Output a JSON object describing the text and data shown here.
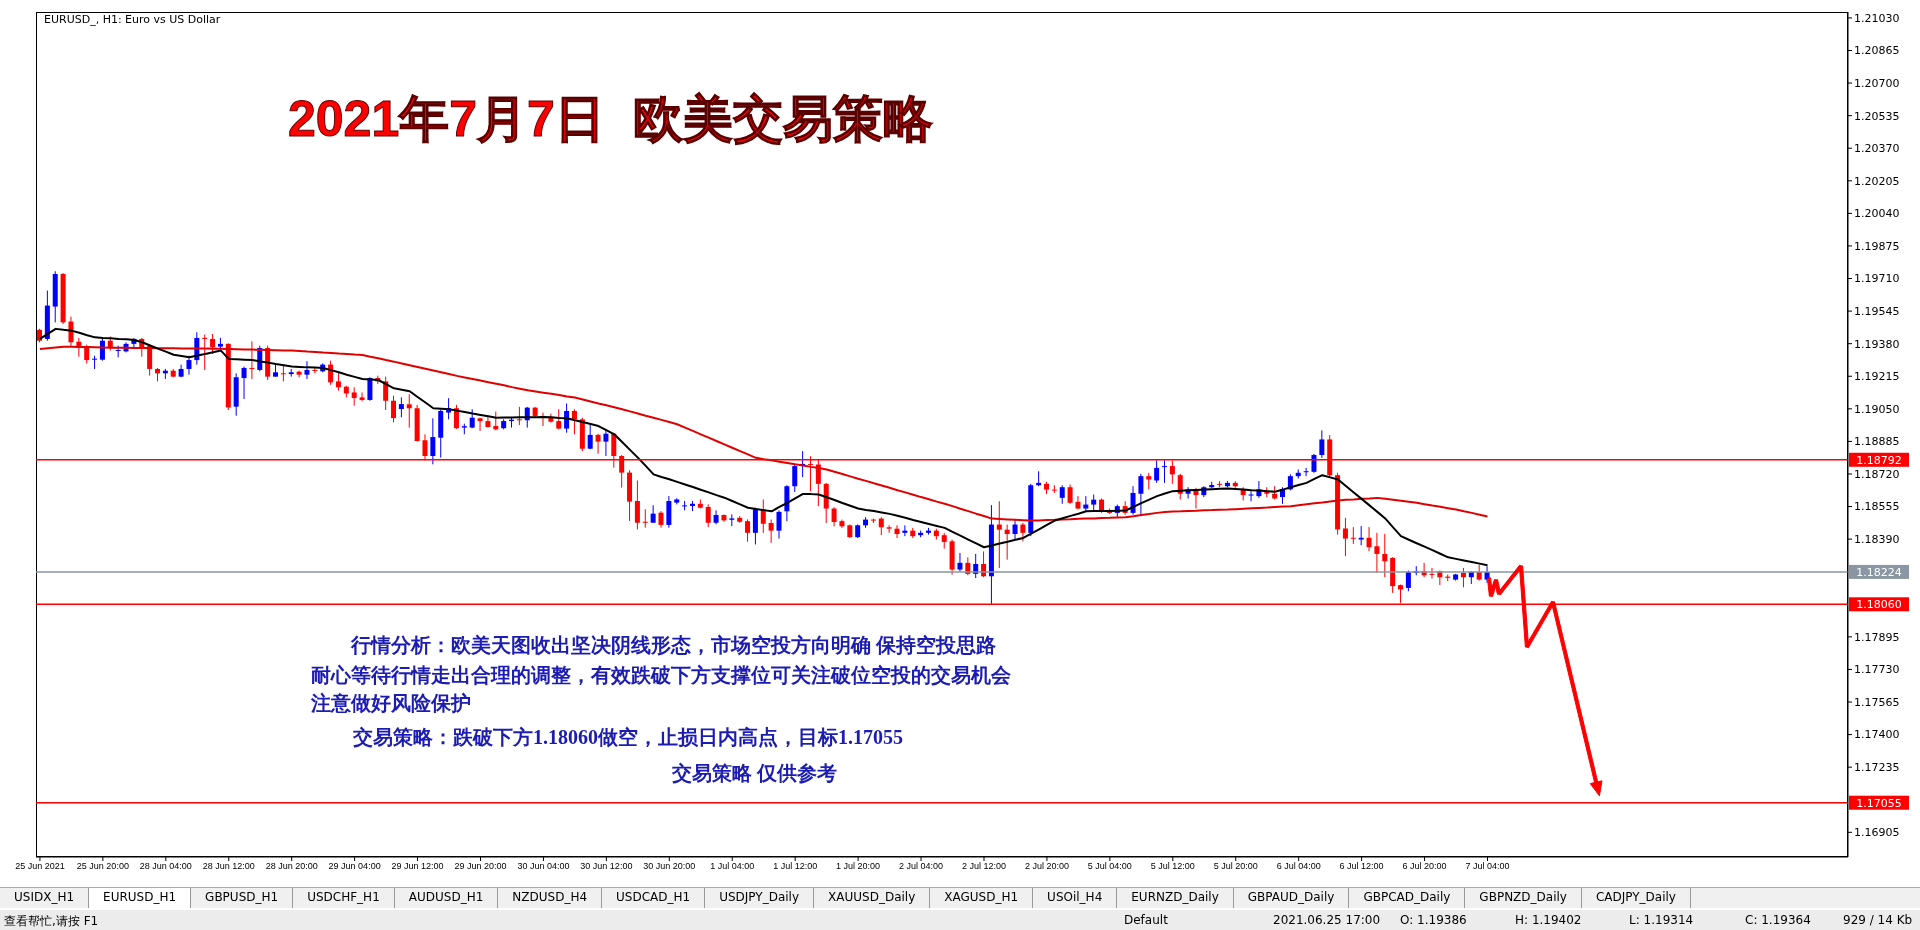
{
  "chart_data": {
    "type": "candlestick",
    "title": "2021年7月7日  欧美交易策略",
    "subtitle": "EURUSD_, H1: Euro vs US Dollar",
    "categories": [
      "25 Jun 2021",
      null,
      null,
      null,
      null,
      null,
      null,
      null,
      "25 Jun 20:00",
      null,
      null,
      null,
      null,
      null,
      null,
      null,
      "28 Jun 04:00",
      null,
      null,
      null,
      null,
      null,
      null,
      null,
      "28 Jun 12:00",
      null,
      null,
      null,
      null,
      null,
      null,
      null,
      "28 Jun 20:00",
      null,
      null,
      null,
      null,
      null,
      null,
      null,
      "29 Jun 04:00",
      null,
      null,
      null,
      null,
      null,
      null,
      null,
      "29 Jun 12:00",
      null,
      null,
      null,
      null,
      null,
      null,
      null,
      "29 Jun 20:00",
      null,
      null,
      null,
      null,
      null,
      null,
      null,
      "30 Jun 04:00",
      null,
      null,
      null,
      null,
      null,
      null,
      null,
      "30 Jun 12:00",
      null,
      null,
      null,
      null,
      null,
      null,
      null,
      "30 Jun 20:00",
      null,
      null,
      null,
      null,
      null,
      null,
      null,
      "1 Jul 04:00",
      null,
      null,
      null,
      null,
      null,
      null,
      null,
      "1 Jul 12:00",
      null,
      null,
      null,
      null,
      null,
      null,
      null,
      "1 Jul 20:00",
      null,
      null,
      null,
      null,
      null,
      null,
      null,
      "2 Jul 04:00",
      null,
      null,
      null,
      null,
      null,
      null,
      null,
      "2 Jul 12:00",
      null,
      null,
      null,
      null,
      null,
      null,
      null,
      "2 Jul 20:00",
      null,
      null,
      null,
      null,
      null,
      null,
      null,
      "5 Jul 04:00",
      null,
      null,
      null,
      null,
      null,
      null,
      null,
      "5 Jul 12:00",
      null,
      null,
      null,
      null,
      null,
      null,
      null,
      "5 Jul 20:00",
      null,
      null,
      null,
      null,
      null,
      null,
      null,
      "6 Jul 04:00",
      null,
      null,
      null,
      null,
      null,
      null,
      null,
      "6 Jul 12:00",
      null,
      null,
      null,
      null,
      null,
      null,
      null,
      "6 Jul 20:00",
      null,
      null,
      null,
      null,
      null,
      null,
      null,
      "7 Jul 04:00"
    ],
    "ohlc": [
      [
        1.1945,
        1.19455,
        1.19387,
        1.19395
      ],
      [
        1.19404,
        1.19649,
        1.19395,
        1.19573
      ],
      [
        1.19568,
        1.19747,
        1.19488,
        1.19733
      ],
      [
        1.19733,
        1.19738,
        1.1948,
        1.19488
      ],
      [
        1.19492,
        1.19517,
        1.19365,
        1.19387
      ],
      [
        1.1939,
        1.19409,
        1.19314,
        1.19365
      ],
      [
        1.19365,
        1.19375,
        1.1928,
        1.19297
      ],
      [
        1.19299,
        1.19319,
        1.19252,
        1.19304
      ],
      [
        1.19299,
        1.19412,
        1.19294,
        1.19395
      ],
      [
        1.19395,
        1.19416,
        1.19345,
        1.19358
      ],
      [
        1.19345,
        1.1937,
        1.19311,
        1.19348
      ],
      [
        1.19341,
        1.19387,
        1.19336,
        1.19379
      ],
      [
        1.19379,
        1.19409,
        1.19362,
        1.19404
      ],
      [
        1.19404,
        1.19409,
        1.19314,
        1.19358
      ],
      [
        1.1937,
        1.19379,
        1.19218,
        1.19252
      ],
      [
        1.19252,
        1.19257,
        1.19189,
        1.1923
      ],
      [
        1.1923,
        1.19252,
        1.19201,
        1.19243
      ],
      [
        1.19243,
        1.19252,
        1.1921,
        1.19213
      ],
      [
        1.19213,
        1.19274,
        1.1921,
        1.19252
      ],
      [
        1.19252,
        1.19319,
        1.19223,
        1.19297
      ],
      [
        1.19297,
        1.19438,
        1.19274,
        1.19409
      ],
      [
        1.19409,
        1.19426,
        1.19247,
        1.19404
      ],
      [
        1.19404,
        1.19429,
        1.19328,
        1.19362
      ],
      [
        1.19365,
        1.19409,
        1.19353,
        1.19379
      ],
      [
        1.19379,
        1.19382,
        1.19044,
        1.19057
      ],
      [
        1.19061,
        1.1923,
        1.19015,
        1.1921
      ],
      [
        1.19206,
        1.19264,
        1.191,
        1.19257
      ],
      [
        1.19257,
        1.19392,
        1.19201,
        1.19252
      ],
      [
        1.19247,
        1.1937,
        1.1924,
        1.19358
      ],
      [
        1.19358,
        1.1937,
        1.19196,
        1.19213
      ],
      [
        1.19213,
        1.19277,
        1.19213,
        1.19235
      ],
      [
        1.1923,
        1.19274,
        1.19189,
        1.19226
      ],
      [
        1.19226,
        1.19252,
        1.19213,
        1.19235
      ],
      [
        1.19238,
        1.19243,
        1.1921,
        1.19223
      ],
      [
        1.19223,
        1.19291,
        1.19201,
        1.19247
      ],
      [
        1.19247,
        1.19257,
        1.1923,
        1.19243
      ],
      [
        1.1924,
        1.1928,
        1.19235,
        1.19274
      ],
      [
        1.19274,
        1.19294,
        1.19172,
        1.19184
      ],
      [
        1.19189,
        1.19235,
        1.19142,
        1.19159
      ],
      [
        1.19162,
        1.19167,
        1.19108,
        1.19128
      ],
      [
        1.19133,
        1.19159,
        1.19066,
        1.19105
      ],
      [
        1.19108,
        1.19133,
        1.19088,
        1.19095
      ],
      [
        1.19095,
        1.1921,
        1.19091,
        1.19206
      ],
      [
        1.19206,
        1.19218,
        1.19176,
        1.19189
      ],
      [
        1.19189,
        1.19213,
        1.19044,
        1.19091
      ],
      [
        1.19091,
        1.19117,
        1.18981,
        1.19003
      ],
      [
        1.19049,
        1.19108,
        1.19007,
        1.19074
      ],
      [
        1.19073,
        1.19124,
        1.18955,
        1.19053
      ],
      [
        1.19053,
        1.1907,
        1.18884,
        1.18887
      ],
      [
        1.18891,
        1.18921,
        1.18789,
        1.18811
      ],
      [
        1.18811,
        1.19002,
        1.18769,
        1.18907
      ],
      [
        1.18904,
        1.19048,
        1.18803,
        1.19039
      ],
      [
        1.19031,
        1.19104,
        1.18997,
        1.19053
      ],
      [
        1.19053,
        1.1907,
        1.18948,
        1.18952
      ],
      [
        1.18955,
        1.18975,
        1.18921,
        1.18962
      ],
      [
        1.18955,
        1.19048,
        1.18952,
        1.19005
      ],
      [
        1.19002,
        1.19005,
        1.18938,
        1.18988
      ],
      [
        1.18988,
        1.19014,
        1.18955,
        1.18958
      ],
      [
        1.18963,
        1.19036,
        1.18941,
        1.18946
      ],
      [
        1.18952,
        1.18997,
        1.18946,
        1.18988
      ],
      [
        1.18988,
        1.19005,
        1.18955,
        1.18995
      ],
      [
        1.18997,
        1.1906,
        1.18968,
        1.18992
      ],
      [
        1.18992,
        1.1906,
        1.18955,
        1.19056
      ],
      [
        1.19056,
        1.1906,
        1.19005,
        1.19014
      ],
      [
        1.19014,
        1.19031,
        1.18963,
        1.19012
      ],
      [
        1.19009,
        1.19026,
        1.1898,
        1.18985
      ],
      [
        1.18988,
        1.19048,
        1.18946,
        1.1895
      ],
      [
        1.1895,
        1.19077,
        1.18929,
        1.19039
      ],
      [
        1.19039,
        1.19048,
        1.18921,
        1.18997
      ],
      [
        1.18997,
        1.19005,
        1.18836,
        1.18848
      ],
      [
        1.18848,
        1.18972,
        1.18845,
        1.18918
      ],
      [
        1.18918,
        1.18924,
        1.18823,
        1.18884
      ],
      [
        1.18884,
        1.18941,
        1.18811,
        1.18924
      ],
      [
        1.18924,
        1.18929,
        1.18752,
        1.18811
      ],
      [
        1.18811,
        1.18816,
        1.18651,
        1.18727
      ],
      [
        1.18727,
        1.18739,
        1.18482,
        1.1858
      ],
      [
        1.18583,
        1.18687,
        1.18439,
        1.18473
      ],
      [
        1.18478,
        1.18541,
        1.18448,
        1.18475
      ],
      [
        1.18473,
        1.18562,
        1.18473,
        1.18519
      ],
      [
        1.18524,
        1.18532,
        1.18448,
        1.18462
      ],
      [
        1.18462,
        1.18608,
        1.18448,
        1.18583
      ],
      [
        1.18575,
        1.18597,
        1.18566,
        1.18591
      ],
      [
        1.18558,
        1.18583,
        1.18536,
        1.18561
      ],
      [
        1.18558,
        1.18583,
        1.18532,
        1.18569
      ],
      [
        1.18569,
        1.18591,
        1.18546,
        1.18549
      ],
      [
        1.18553,
        1.18566,
        1.18451,
        1.18473
      ],
      [
        1.18473,
        1.18536,
        1.18465,
        1.18512
      ],
      [
        1.18512,
        1.18515,
        1.18478,
        1.18485
      ],
      [
        1.18488,
        1.18515,
        1.18456,
        1.18495
      ],
      [
        1.18498,
        1.18507,
        1.18473,
        1.18478
      ],
      [
        1.18481,
        1.1849,
        1.18377,
        1.18422
      ],
      [
        1.18422,
        1.18549,
        1.18363,
        1.18541
      ],
      [
        1.18541,
        1.18591,
        1.18422,
        1.18468
      ],
      [
        1.18472,
        1.18489,
        1.18371,
        1.18433
      ],
      [
        1.18433,
        1.18535,
        1.18393,
        1.18528
      ],
      [
        1.18531,
        1.18663,
        1.18481,
        1.18658
      ],
      [
        1.18658,
        1.18771,
        1.18629,
        1.1876
      ],
      [
        1.18765,
        1.18836,
        1.18704,
        1.18771
      ],
      [
        1.18771,
        1.1881,
        1.18633,
        1.18768
      ],
      [
        1.18768,
        1.18793,
        1.18557,
        1.1867
      ],
      [
        1.1867,
        1.18675,
        1.18472,
        1.18545
      ],
      [
        1.18545,
        1.18552,
        1.18455,
        1.18477
      ],
      [
        1.18481,
        1.18489,
        1.18447,
        1.18455
      ],
      [
        1.1846,
        1.18464,
        1.18396,
        1.184
      ],
      [
        1.184,
        1.18464,
        1.18396,
        1.1846
      ],
      [
        1.1846,
        1.18501,
        1.18447,
        1.18489
      ],
      [
        1.18489,
        1.18494,
        1.18472,
        1.18486
      ],
      [
        1.18494,
        1.18501,
        1.1841,
        1.1845
      ],
      [
        1.1845,
        1.1846,
        1.18422,
        1.18443
      ],
      [
        1.18443,
        1.1846,
        1.18396,
        1.18416
      ],
      [
        1.18422,
        1.1846,
        1.18405,
        1.18433
      ],
      [
        1.18433,
        1.18447,
        1.18396,
        1.18405
      ],
      [
        1.1841,
        1.18433,
        1.184,
        1.18422
      ],
      [
        1.18422,
        1.18447,
        1.18413,
        1.18433
      ],
      [
        1.18433,
        1.18443,
        1.18388,
        1.18405
      ],
      [
        1.1841,
        1.18422,
        1.18342,
        1.18376
      ],
      [
        1.18379,
        1.18388,
        1.1821,
        1.18236
      ],
      [
        1.18236,
        1.1832,
        1.18227,
        1.1827
      ],
      [
        1.1827,
        1.18298,
        1.18207,
        1.18214
      ],
      [
        1.18214,
        1.18315,
        1.18193,
        1.18264
      ],
      [
        1.18264,
        1.18328,
        1.18197,
        1.18202
      ],
      [
        1.18202,
        1.18562,
        1.18062,
        1.18464
      ],
      [
        1.18464,
        1.18582,
        1.18244,
        1.18438
      ],
      [
        1.18438,
        1.18464,
        1.18286,
        1.18416
      ],
      [
        1.18416,
        1.18489,
        1.18388,
        1.18464
      ],
      [
        1.18464,
        1.18472,
        1.18379,
        1.18422
      ],
      [
        1.18422,
        1.1867,
        1.18405,
        1.18663
      ],
      [
        1.18663,
        1.18734,
        1.18658,
        1.18675
      ],
      [
        1.1867,
        1.1868,
        1.18619,
        1.18641
      ],
      [
        1.18641,
        1.18663,
        1.18624,
        1.18636
      ],
      [
        1.18599,
        1.18663,
        1.18569,
        1.18653
      ],
      [
        1.18653,
        1.18667,
        1.18569,
        1.18574
      ],
      [
        1.18579,
        1.18608,
        1.1854,
        1.18545
      ],
      [
        1.18545,
        1.18608,
        1.18531,
        1.18565
      ],
      [
        1.18565,
        1.18616,
        1.18531,
        1.1859
      ],
      [
        1.1859,
        1.18596,
        1.18523,
        1.18528
      ],
      [
        1.18528,
        1.18545,
        1.18518,
        1.18523
      ],
      [
        1.18523,
        1.18565,
        1.18501,
        1.18557
      ],
      [
        1.18557,
        1.18582,
        1.18514,
        1.18523
      ],
      [
        1.18523,
        1.18658,
        1.18514,
        1.18624
      ],
      [
        1.1862,
        1.18721,
        1.18506,
        1.18709
      ],
      [
        1.18709,
        1.18726,
        1.18642,
        1.18692
      ],
      [
        1.18687,
        1.18789,
        1.18675,
        1.18751
      ],
      [
        1.18755,
        1.18789,
        1.18675,
        1.1876
      ],
      [
        1.1876,
        1.18789,
        1.1867,
        1.18718
      ],
      [
        1.18714,
        1.18721,
        1.18591,
        1.1862
      ],
      [
        1.1862,
        1.18653,
        1.18596,
        1.18642
      ],
      [
        1.18642,
        1.1865,
        1.18545,
        1.18613
      ],
      [
        1.18613,
        1.18658,
        1.18603,
        1.18653
      ],
      [
        1.18653,
        1.1868,
        1.18647,
        1.18664
      ],
      [
        1.1867,
        1.18684,
        1.18653,
        1.18667
      ],
      [
        1.18658,
        1.18684,
        1.18653,
        1.18675
      ],
      [
        1.18675,
        1.18684,
        1.1865,
        1.18658
      ],
      [
        1.18642,
        1.18653,
        1.18586,
        1.18613
      ],
      [
        1.18613,
        1.18633,
        1.18582,
        1.18616
      ],
      [
        1.18608,
        1.18684,
        1.18599,
        1.18642
      ],
      [
        1.18633,
        1.18653,
        1.18603,
        1.1862
      ],
      [
        1.1862,
        1.18658,
        1.18591,
        1.18596
      ],
      [
        1.18603,
        1.18653,
        1.18569,
        1.18642
      ],
      [
        1.18642,
        1.18718,
        1.18637,
        1.18709
      ],
      [
        1.18709,
        1.18743,
        1.18697,
        1.18726
      ],
      [
        1.18729,
        1.18751,
        1.18709,
        1.18734
      ],
      [
        1.18731,
        1.18822,
        1.18726,
        1.18816
      ],
      [
        1.18816,
        1.18941,
        1.18802,
        1.18895
      ],
      [
        1.18895,
        1.18917,
        1.18701,
        1.18714
      ],
      [
        1.18714,
        1.18726,
        1.18413,
        1.18439
      ],
      [
        1.18444,
        1.18498,
        1.18304,
        1.18393
      ],
      [
        1.18397,
        1.18451,
        1.18366,
        1.18393
      ],
      [
        1.18388,
        1.18456,
        1.18359,
        1.18397
      ],
      [
        1.18397,
        1.18451,
        1.18329,
        1.18349
      ],
      [
        1.18354,
        1.18422,
        1.18219,
        1.18315
      ],
      [
        1.18315,
        1.18417,
        1.18197,
        1.18278
      ],
      [
        1.18295,
        1.18299,
        1.18118,
        1.18152
      ],
      [
        1.18157,
        1.1816,
        1.18067,
        1.18135
      ],
      [
        1.18143,
        1.18231,
        1.18126,
        1.18224
      ],
      [
        1.18219,
        1.18253,
        1.18207,
        1.18227
      ],
      [
        1.18227,
        1.1827,
        1.18197,
        1.18207
      ],
      [
        1.18214,
        1.18244,
        1.1819,
        1.18211
      ],
      [
        1.18227,
        1.18231,
        1.18157,
        1.18197
      ],
      [
        1.182,
        1.18211,
        1.18177,
        1.18194
      ],
      [
        1.18185,
        1.18214,
        1.1818,
        1.18211
      ],
      [
        1.18219,
        1.18244,
        1.18146,
        1.18197
      ],
      [
        1.18197,
        1.18227,
        1.18163,
        1.18224
      ],
      [
        1.18224,
        1.18261,
        1.1818,
        1.18185
      ],
      [
        1.18185,
        1.18253,
        1.18169,
        1.18224
      ]
    ],
    "colors": [
      "#ff0000",
      "#0000ff",
      "#0000ff",
      "#ff0000",
      "#ff0000",
      "#ff0000",
      "#ff0000",
      "#0000ff",
      "#0000ff",
      "#ff0000",
      "#0000ff",
      "#0000ff",
      "#0000ff",
      "#ff0000",
      "#ff0000",
      "#ff0000",
      "#0000ff",
      "#ff0000",
      "#0000ff",
      "#0000ff",
      "#0000ff",
      "#ff0000",
      "#ff0000",
      "#0000ff",
      "#ff0000",
      "#0000ff",
      "#0000ff",
      "#ff0000",
      "#0000ff",
      "#ff0000",
      "#0000ff",
      "#ff0000",
      "#0000ff",
      "#ff0000",
      "#0000ff",
      "#ff0000",
      "#0000ff",
      "#ff0000",
      "#ff0000",
      "#ff0000",
      "#ff0000",
      "#ff0000",
      "#0000ff",
      "#ff0000",
      "#ff0000",
      "#ff0000",
      "#0000ff",
      "#ff0000",
      "#ff0000",
      "#ff0000",
      "#0000ff",
      "#0000ff",
      "#0000ff",
      "#ff0000",
      "#0000ff",
      "#0000ff",
      "#ff0000",
      "#ff0000",
      "#ff0000",
      "#0000ff",
      "#0000ff",
      "#ff0000",
      "#0000ff",
      "#ff0000",
      "#ff0000",
      "#ff0000",
      "#ff0000",
      "#0000ff",
      "#ff0000",
      "#ff0000",
      "#0000ff",
      "#ff0000",
      "#0000ff",
      "#ff0000",
      "#ff0000",
      "#ff0000",
      "#ff0000",
      "#ff0000",
      "#0000ff",
      "#ff0000",
      "#0000ff",
      "#0000ff",
      "#0000ff",
      "#0000ff",
      "#ff0000",
      "#ff0000",
      "#0000ff",
      "#ff0000",
      "#0000ff",
      "#ff0000",
      "#ff0000",
      "#0000ff",
      "#ff0000",
      "#ff0000",
      "#0000ff",
      "#0000ff",
      "#0000ff",
      "#0000ff",
      "#ff0000",
      "#ff0000",
      "#ff0000",
      "#ff0000",
      "#ff0000",
      "#ff0000",
      "#0000ff",
      "#0000ff",
      "#ff0000",
      "#ff0000",
      "#ff0000",
      "#ff0000",
      "#0000ff",
      "#ff0000",
      "#0000ff",
      "#0000ff",
      "#ff0000",
      "#ff0000",
      "#ff0000",
      "#0000ff",
      "#ff0000",
      "#0000ff",
      "#ff0000",
      "#0000ff",
      "#ff0000",
      "#ff0000",
      "#0000ff",
      "#ff0000",
      "#0000ff",
      "#0000ff",
      "#ff0000",
      "#ff0000",
      "#0000ff",
      "#ff0000",
      "#ff0000",
      "#0000ff",
      "#0000ff",
      "#ff0000",
      "#ff0000",
      "#0000ff",
      "#ff0000",
      "#0000ff",
      "#0000ff",
      "#ff0000",
      "#0000ff",
      "#0000ff",
      "#ff0000",
      "#ff0000",
      "#0000ff",
      "#ff0000",
      "#0000ff",
      "#0000ff",
      "#ff0000",
      "#0000ff",
      "#ff0000",
      "#ff0000",
      "#0000ff",
      "#0000ff",
      "#ff0000",
      "#ff0000",
      "#0000ff",
      "#0000ff",
      "#0000ff",
      "#0000ff",
      "#0000ff",
      "#0000ff",
      "#ff0000",
      "#ff0000",
      "#ff0000",
      "#ff0000",
      "#0000ff",
      "#ff0000",
      "#ff0000",
      "#ff0000",
      "#ff0000",
      "#ff0000",
      "#0000ff",
      "#0000ff",
      "#ff0000",
      "#ff0000",
      "#ff0000",
      "#ff0000",
      "#0000ff",
      "#ff0000",
      "#0000ff",
      "#ff0000",
      "#0000ff"
    ],
    "series": [
      {
        "type": "line",
        "color": "#e00000",
        "values": [
          1.19353,
          1.19357,
          1.19361,
          1.19365,
          1.19364,
          1.19363,
          1.19363,
          1.19362,
          1.19361,
          1.1936,
          1.19359,
          1.19359,
          1.19358,
          1.19358,
          1.19358,
          1.19357,
          1.19357,
          1.19357,
          1.19356,
          1.19356,
          1.19355,
          1.19355,
          1.19354,
          1.19354,
          1.19353,
          1.19352,
          1.19351,
          1.1935,
          1.19349,
          1.19348,
          1.19347,
          1.19346,
          1.19345,
          1.19343,
          1.1934,
          1.19338,
          1.19335,
          1.19333,
          1.1933,
          1.19328,
          1.19325,
          1.19323,
          1.19314,
          1.19306,
          1.19297,
          1.19289,
          1.1928,
          1.19271,
          1.19262,
          1.19253,
          1.19244,
          1.19235,
          1.19226,
          1.19217,
          1.19209,
          1.19201,
          1.19193,
          1.19185,
          1.19177,
          1.19169,
          1.1916,
          1.19152,
          1.19144,
          1.19138,
          1.19132,
          1.19126,
          1.1912,
          1.19113,
          1.19107,
          1.19097,
          1.19087,
          1.19077,
          1.19068,
          1.19058,
          1.19048,
          1.19037,
          1.19026,
          1.19015,
          1.19005,
          1.18994,
          1.18983,
          1.18972,
          1.18955,
          1.18938,
          1.18921,
          1.18904,
          1.18887,
          1.1887,
          1.18853,
          1.18836,
          1.18819,
          1.18802,
          1.18795,
          1.18789,
          1.18782,
          1.18776,
          1.18769,
          1.18763,
          1.18756,
          1.1875,
          1.18743,
          1.18731,
          1.1872,
          1.18708,
          1.18696,
          1.18685,
          1.18673,
          1.18662,
          1.1865,
          1.18638,
          1.18627,
          1.18615,
          1.18603,
          1.18592,
          1.1858,
          1.18569,
          1.18557,
          1.18544,
          1.18532,
          1.18519,
          1.18507,
          1.18494,
          1.18492,
          1.1849,
          1.18488,
          1.18486,
          1.18484,
          1.18485,
          1.18487,
          1.18488,
          1.1849,
          1.18491,
          1.18493,
          1.18494,
          1.18495,
          1.18497,
          1.18498,
          1.185,
          1.18501,
          1.18506,
          1.18512,
          1.18517,
          1.18523,
          1.18528,
          1.1853,
          1.18531,
          1.18533,
          1.18534,
          1.18536,
          1.18537,
          1.18539,
          1.1854,
          1.18542,
          1.18544,
          1.18546,
          1.18548,
          1.1855,
          1.18553,
          1.18555,
          1.18557,
          1.18562,
          1.18567,
          1.18572,
          1.18576,
          1.18581,
          1.18586,
          1.18589,
          1.18591,
          1.18594,
          1.18596,
          1.18599,
          1.18594,
          1.18589,
          1.18584,
          1.18579,
          1.18574,
          1.18567,
          1.1856,
          1.18554,
          1.18547,
          1.1854,
          1.18531,
          1.18523,
          1.18514,
          1.18505
        ]
      },
      {
        "type": "line",
        "color": "#000000",
        "values": [
          1.19404,
          1.1943,
          1.19455,
          1.1945,
          1.19446,
          1.19435,
          1.19423,
          1.19412,
          1.19409,
          1.19407,
          1.19404,
          1.19402,
          1.19399,
          1.19387,
          1.19371,
          1.19355,
          1.1934,
          1.19324,
          1.19318,
          1.19311,
          1.1932,
          1.19328,
          1.19337,
          1.19345,
          1.19303,
          1.19301,
          1.19299,
          1.19297,
          1.1929,
          1.19284,
          1.19277,
          1.19271,
          1.19264,
          1.19262,
          1.1926,
          1.19259,
          1.19257,
          1.19246,
          1.19235,
          1.19223,
          1.19212,
          1.19201,
          1.19199,
          1.19196,
          1.19175,
          1.19154,
          1.19147,
          1.19139,
          1.1911,
          1.19082,
          1.19053,
          1.19051,
          1.19048,
          1.19041,
          1.19034,
          1.19026,
          1.19019,
          1.19012,
          1.19005,
          1.19006,
          1.19006,
          1.19007,
          1.19008,
          1.19008,
          1.19009,
          1.19007,
          1.19004,
          1.19002,
          1.18992,
          1.18983,
          1.18973,
          1.18963,
          1.18942,
          1.18921,
          1.18882,
          1.18842,
          1.18803,
          1.18761,
          1.18718,
          1.18705,
          1.18693,
          1.1868,
          1.18667,
          1.18654,
          1.1864,
          1.18627,
          1.18613,
          1.186,
          1.18583,
          1.18566,
          1.18549,
          1.18543,
          1.18537,
          1.18531,
          1.18553,
          1.18574,
          1.18597,
          1.18619,
          1.18618,
          1.18616,
          1.18602,
          1.18588,
          1.18573,
          1.18559,
          1.18545,
          1.18538,
          1.18532,
          1.18525,
          1.18518,
          1.18508,
          1.18498,
          1.18487,
          1.18477,
          1.18467,
          1.18457,
          1.18447,
          1.18427,
          1.18408,
          1.18388,
          1.18369,
          1.18349,
          1.18358,
          1.18368,
          1.18377,
          1.18387,
          1.18396,
          1.18418,
          1.1844,
          1.18462,
          1.18484,
          1.18496,
          1.18508,
          1.18519,
          1.18531,
          1.18532,
          1.18533,
          1.18533,
          1.18534,
          1.18535,
          1.18553,
          1.18572,
          1.1859,
          1.18608,
          1.18621,
          1.18633,
          1.18635,
          1.18637,
          1.18639,
          1.18641,
          1.18643,
          1.18645,
          1.18647,
          1.18644,
          1.18641,
          1.18638,
          1.18636,
          1.18633,
          1.1863,
          1.18641,
          1.18653,
          1.18664,
          1.18675,
          1.18695,
          1.18714,
          1.18703,
          1.18692,
          1.18659,
          1.18626,
          1.18594,
          1.18561,
          1.18528,
          1.18495,
          1.1845,
          1.18405,
          1.18387,
          1.18369,
          1.18352,
          1.18334,
          1.18316,
          1.18298,
          1.1829,
          1.18282,
          1.18274,
          1.18266,
          1.18258
        ]
      }
    ],
    "ylim": [
      1.1678,
      1.2106
    ],
    "yticks": [
      {
        "value": 1.2103,
        "label": "1.21030"
      },
      {
        "value": 1.20865,
        "label": "1.20865"
      },
      {
        "value": 1.207,
        "label": "1.20700"
      },
      {
        "value": 1.20535,
        "label": "1.20535"
      },
      {
        "value": 1.2037,
        "label": "1.20370"
      },
      {
        "value": 1.20205,
        "label": "1.20205"
      },
      {
        "value": 1.2004,
        "label": "1.20040"
      },
      {
        "value": 1.19875,
        "label": "1.19875"
      },
      {
        "value": 1.1971,
        "label": "1.19710"
      },
      {
        "value": 1.19545,
        "label": "1.19545"
      },
      {
        "value": 1.1938,
        "label": "1.19380"
      },
      {
        "value": 1.19215,
        "label": "1.19215"
      },
      {
        "value": 1.1905,
        "label": "1.19050"
      },
      {
        "value": 1.18885,
        "label": "1.18885"
      },
      {
        "value": 1.1872,
        "label": "1.18720"
      },
      {
        "value": 1.18555,
        "label": "1.18555"
      },
      {
        "value": 1.1839,
        "label": "1.18390"
      },
      {
        "value": 1.17895,
        "label": "1.17895"
      },
      {
        "value": 1.1773,
        "label": "1.17730"
      },
      {
        "value": 1.17565,
        "label": "1.17565"
      },
      {
        "value": 1.174,
        "label": "1.17400"
      },
      {
        "value": 1.17235,
        "label": "1.17235"
      },
      {
        "value": 1.16905,
        "label": "1.16905"
      }
    ],
    "ref_lines": [
      {
        "axis": "y",
        "value": 1.18792,
        "label": "1.18792",
        "color": "#ff0000"
      },
      {
        "axis": "y",
        "value": 1.18224,
        "label": "1.18224",
        "color": "#8a96a3"
      },
      {
        "axis": "y",
        "value": 1.1806,
        "label": "1.18060",
        "color": "#ff0000"
      },
      {
        "axis": "y",
        "value": 1.17055,
        "label": "1.17055",
        "color": "#ff0000"
      }
    ],
    "annotations": [
      "行情分析：欧美天图收出坚决阴线形态，市场空投方向明确 保持空投思路",
      "耐心等待行情走出合理的调整，有效跌破下方支撑位可关注破位空投的交易机会",
      "注意做好风险保护",
      "交易策略：跌破下方1.18060做空，止损日内高点，目标1.17055",
      "交易策略 仅供参考",
      "USIDX_H1",
      "EURUSD_H1",
      "GBPUSD_H1",
      "USDCHF_H1",
      "AUDUSD_H1",
      "NZDUSD_H4",
      "USDCAD_H1",
      "USDJPY_Daily",
      "XAUUSD_Daily",
      "XAGUSD_H1",
      "USOil_H4",
      "EURNZD_Daily",
      "GBPAUD_Daily",
      "GBPCAD_Daily",
      "GBPNZD_Daily",
      "CADJPY_Daily",
      "查看帮忙,请按 F1",
      "Default",
      "2021.06.25 17:00",
      "O: 1.19386",
      "H: 1.19402",
      "L: 1.19314",
      "C: 1.19364",
      "929 / 14 Kb"
    ]
  }
}
